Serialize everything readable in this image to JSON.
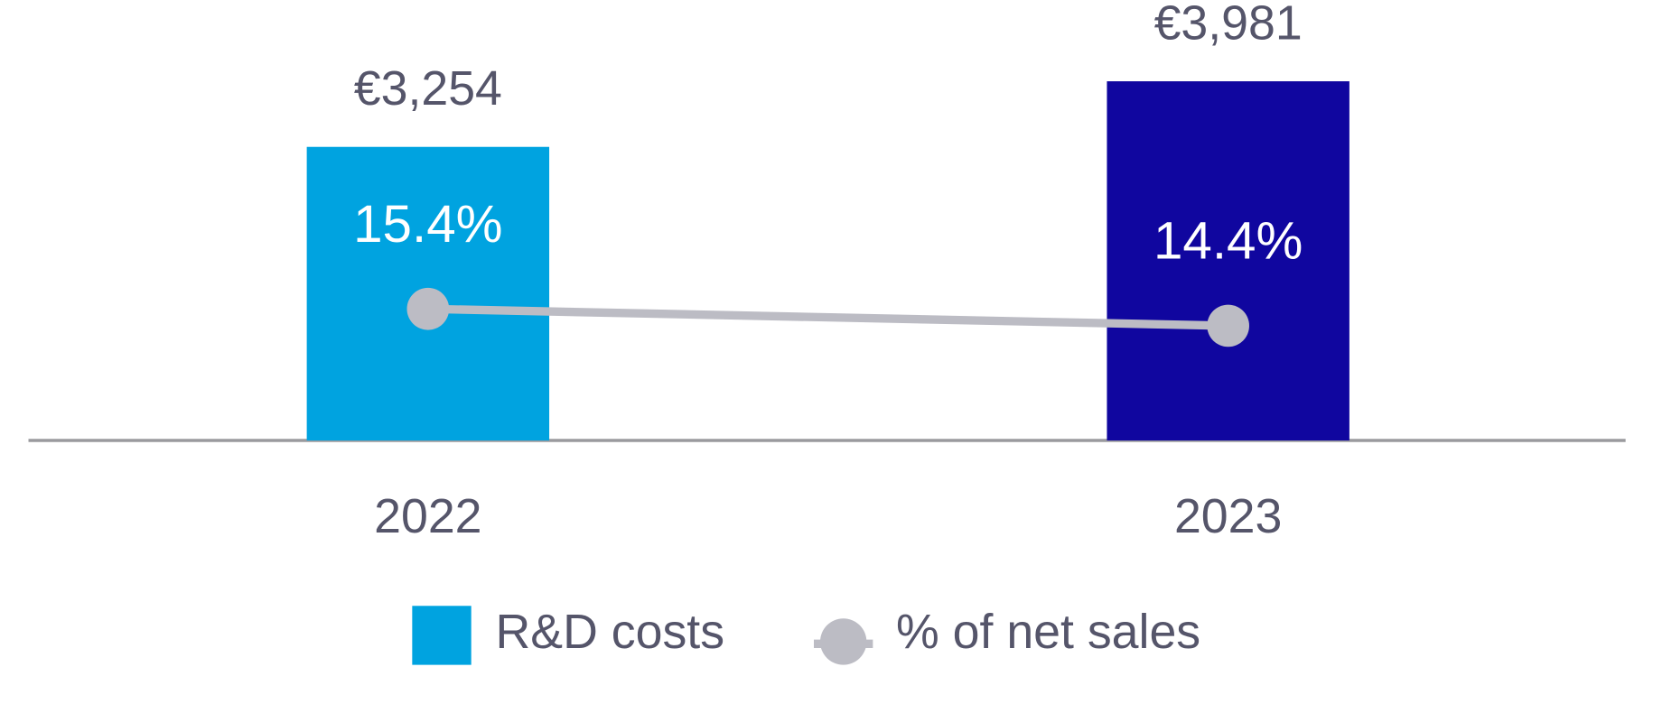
{
  "chart_data": {
    "type": "bar",
    "categories": [
      "2022",
      "2023"
    ],
    "series": [
      {
        "name": "R&D costs",
        "type": "bar",
        "colors": [
          "#00a3e0",
          "#10069f"
        ],
        "values": [
          3254,
          3981
        ],
        "value_labels": [
          "€3,254",
          "€3,981"
        ]
      },
      {
        "name": "% of net sales",
        "type": "line",
        "axis": "y2",
        "color": "#bcbcc4",
        "values": [
          15.4,
          14.4
        ],
        "value_labels": [
          "15.4%",
          "14.4%"
        ]
      }
    ],
    "ylim": [
      0,
      4880
    ],
    "y2lim": [
      7.6,
      33.7
    ],
    "legend": "bottom"
  }
}
